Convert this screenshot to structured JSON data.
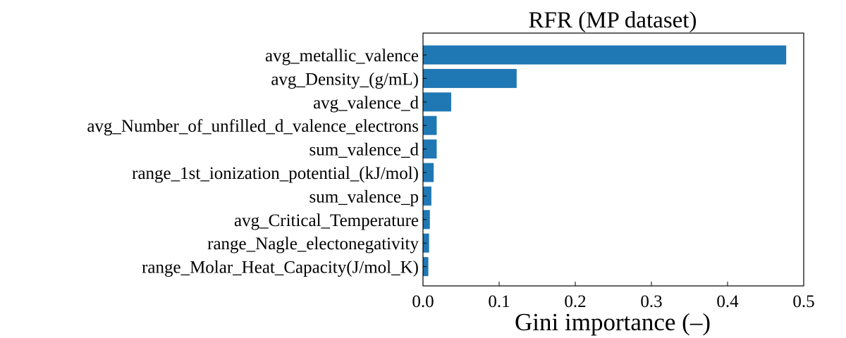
{
  "chart_data": {
    "type": "bar",
    "orientation": "horizontal",
    "title": "RFR (MP dataset)",
    "xlabel": "Gini importance (–)",
    "ylabel": "",
    "xlim": [
      0.0,
      0.5
    ],
    "xticks": [
      "0.0",
      "0.1",
      "0.2",
      "0.3",
      "0.4",
      "0.5"
    ],
    "xtick_values": [
      0.0,
      0.1,
      0.2,
      0.3,
      0.4,
      0.5
    ],
    "categories": [
      "avg_metallic_valence",
      "avg_Density_(g/mL)",
      "avg_valence_d",
      "avg_Number_of_unfilled_d_valence_electrons",
      "sum_valence_d",
      "range_1st_ionization_potential_(kJ/mol)",
      "sum_valence_p",
      "avg_Critical_Temperature",
      "range_Nagle_electonegativity",
      "range_Molar_Heat_Capacity(J/mol_K)"
    ],
    "values": [
      0.477,
      0.123,
      0.037,
      0.018,
      0.018,
      0.014,
      0.011,
      0.009,
      0.008,
      0.007
    ],
    "bar_color": "#1f77b4",
    "grid": false,
    "legend": "none"
  }
}
